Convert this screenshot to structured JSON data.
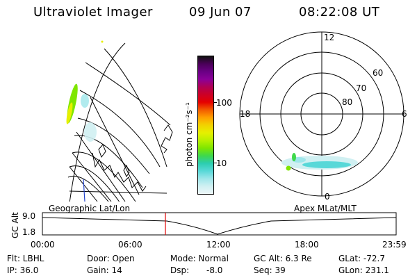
{
  "header": {
    "instrument": "Ultraviolet Imager",
    "date": "09 Jun 07",
    "time": "08:22:08 UT"
  },
  "colorbar": {
    "unit_label": "photon cm⁻²s⁻¹",
    "ticks": [
      "100",
      "10"
    ],
    "colors": [
      "#111111",
      "#4b0059",
      "#6a0084",
      "#8a0099",
      "#b00054",
      "#cc0026",
      "#e50000",
      "#f25a00",
      "#ff9f00",
      "#f2d200",
      "#e6f000",
      "#b9f000",
      "#7fe600",
      "#3fd84b",
      "#2ccdb0",
      "#58d8d8",
      "#9ee6ea",
      "#d0f0f2",
      "#eef6f8"
    ]
  },
  "polar": {
    "lat_labels": [
      "60",
      "70",
      "80"
    ],
    "mlt_labels": [
      "12",
      "18",
      "6",
      "0"
    ]
  },
  "lower_panel": {
    "left_label": "Geographic Lat/Lon",
    "right_label": "Apex MLat/MLT",
    "axis_title": "GC Alt",
    "y_ticks": [
      "9.0",
      "1.8"
    ],
    "x_ticks": [
      "00:00",
      "06:00",
      "12:00",
      "18:00",
      "23:59"
    ],
    "marker_color": "#e00000"
  },
  "info": {
    "filter": "Flt: LBHL",
    "door": "Door: Open",
    "mode": "Mode: Normal",
    "gc_alt": "GC Alt: 6.3 Re",
    "glat": "GLat: -72.7",
    "ip": "IP: 36.0",
    "gain": "Gain: 14",
    "dsp_label": "Dsp:",
    "dsp_value": "-8.0",
    "seq": "Seq: 39",
    "glon": "GLon: 231.1"
  }
}
